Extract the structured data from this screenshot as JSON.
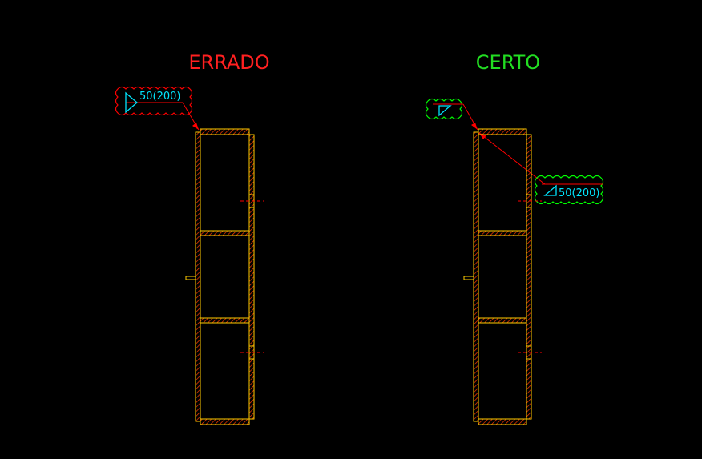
{
  "left_panel": {
    "title": "ERRADO",
    "weld_label": "50(200)"
  },
  "right_panel": {
    "title": "CERTO",
    "weld_label": "50(200)"
  },
  "colors": {
    "background": "#000000",
    "wrong": "#ff2020",
    "right": "#22dd22",
    "steel": "#ffcc00",
    "hatch": "#ff3c00",
    "weld_symbol": "#00e5ff",
    "leader": "#ff0000",
    "cloud_wrong": "#ff0000",
    "cloud_right": "#00ff00"
  }
}
